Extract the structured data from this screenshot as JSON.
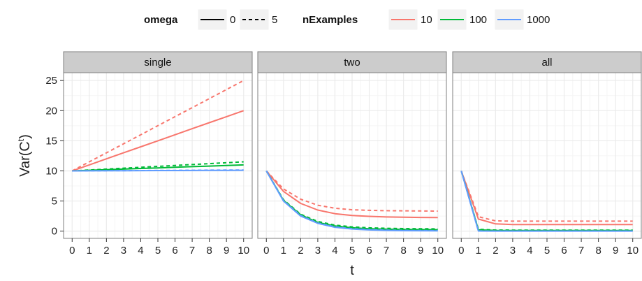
{
  "chart_data": {
    "type": "line",
    "facet_by": "panel",
    "panels": [
      "single",
      "two",
      "all"
    ],
    "xlabel": "t",
    "ylabel": "Var(C",
    "ylabel_superscript": "t",
    "ylabel_close": ")",
    "x": [
      0,
      1,
      2,
      3,
      4,
      5,
      6,
      7,
      8,
      9,
      10
    ],
    "xlim": [
      -0.5,
      10.5
    ],
    "ylim": [
      -1.2,
      26.3
    ],
    "y_ticks": [
      0,
      5,
      10,
      15,
      20,
      25
    ],
    "grid": true,
    "legend_position": "top",
    "legend": {
      "omega": {
        "title": "omega",
        "entries": [
          {
            "label": "0",
            "linetype": "solid"
          },
          {
            "label": "5",
            "linetype": "dashed"
          }
        ]
      },
      "nExamples": {
        "title": "nExamples",
        "entries": [
          {
            "label": "10",
            "color": "#F8766D"
          },
          {
            "label": "100",
            "color": "#00BA38"
          },
          {
            "label": "1000",
            "color": "#619CFF"
          }
        ]
      }
    },
    "series": [
      {
        "panel": "single",
        "omega": "0",
        "nExamples": "10",
        "values": [
          10,
          11,
          12,
          13,
          14,
          15,
          16,
          17,
          18,
          19,
          20
        ]
      },
      {
        "panel": "single",
        "omega": "5",
        "nExamples": "10",
        "values": [
          10,
          11.5,
          13,
          14.5,
          16,
          17.5,
          19,
          20.5,
          22,
          23.5,
          25
        ]
      },
      {
        "panel": "single",
        "omega": "0",
        "nExamples": "100",
        "values": [
          10,
          10.1,
          10.2,
          10.3,
          10.4,
          10.5,
          10.6,
          10.7,
          10.8,
          10.9,
          11
        ]
      },
      {
        "panel": "single",
        "omega": "5",
        "nExamples": "100",
        "values": [
          10,
          10.15,
          10.3,
          10.45,
          10.6,
          10.75,
          10.9,
          11.05,
          11.2,
          11.35,
          11.5
        ]
      },
      {
        "panel": "single",
        "omega": "0",
        "nExamples": "1000",
        "values": [
          10,
          10.01,
          10.02,
          10.03,
          10.04,
          10.05,
          10.06,
          10.07,
          10.08,
          10.09,
          10.1
        ]
      },
      {
        "panel": "single",
        "omega": "5",
        "nExamples": "1000",
        "values": [
          10,
          10.015,
          10.03,
          10.045,
          10.06,
          10.075,
          10.09,
          10.105,
          10.12,
          10.135,
          10.15
        ]
      },
      {
        "panel": "two",
        "omega": "0",
        "nExamples": "10",
        "values": [
          10,
          6.6,
          4.6,
          3.5,
          2.9,
          2.6,
          2.45,
          2.35,
          2.3,
          2.27,
          2.25
        ]
      },
      {
        "panel": "two",
        "omega": "5",
        "nExamples": "10",
        "values": [
          10,
          7.0,
          5.3,
          4.3,
          3.8,
          3.55,
          3.45,
          3.4,
          3.37,
          3.35,
          3.33
        ]
      },
      {
        "panel": "two",
        "omega": "0",
        "nExamples": "100",
        "values": [
          10,
          5.1,
          2.7,
          1.45,
          0.85,
          0.55,
          0.4,
          0.32,
          0.28,
          0.25,
          0.24
        ]
      },
      {
        "panel": "two",
        "omega": "5",
        "nExamples": "100",
        "values": [
          10,
          5.2,
          2.8,
          1.6,
          1.0,
          0.7,
          0.55,
          0.47,
          0.42,
          0.4,
          0.38
        ]
      },
      {
        "panel": "two",
        "omega": "0",
        "nExamples": "1000",
        "values": [
          10,
          5.0,
          2.5,
          1.3,
          0.65,
          0.35,
          0.2,
          0.12,
          0.08,
          0.06,
          0.05
        ]
      },
      {
        "panel": "two",
        "omega": "5",
        "nExamples": "1000",
        "values": [
          10,
          5.05,
          2.6,
          1.35,
          0.72,
          0.4,
          0.25,
          0.17,
          0.12,
          0.1,
          0.09
        ]
      },
      {
        "panel": "all",
        "omega": "0",
        "nExamples": "10",
        "values": [
          10,
          2.0,
          1.2,
          1.1,
          1.1,
          1.1,
          1.1,
          1.1,
          1.1,
          1.1,
          1.1
        ]
      },
      {
        "panel": "all",
        "omega": "5",
        "nExamples": "10",
        "values": [
          10,
          2.4,
          1.7,
          1.65,
          1.65,
          1.65,
          1.65,
          1.65,
          1.65,
          1.65,
          1.65
        ]
      },
      {
        "panel": "all",
        "omega": "0",
        "nExamples": "100",
        "values": [
          10,
          0.2,
          0.12,
          0.11,
          0.11,
          0.11,
          0.11,
          0.11,
          0.11,
          0.11,
          0.11
        ]
      },
      {
        "panel": "all",
        "omega": "5",
        "nExamples": "100",
        "values": [
          10,
          0.3,
          0.18,
          0.17,
          0.17,
          0.17,
          0.17,
          0.17,
          0.17,
          0.17,
          0.17
        ]
      },
      {
        "panel": "all",
        "omega": "0",
        "nExamples": "1000",
        "values": [
          10,
          0.02,
          0.01,
          0.01,
          0.01,
          0.01,
          0.01,
          0.01,
          0.01,
          0.01,
          0.01
        ]
      },
      {
        "panel": "all",
        "omega": "5",
        "nExamples": "1000",
        "values": [
          10,
          0.03,
          0.02,
          0.02,
          0.02,
          0.02,
          0.02,
          0.02,
          0.02,
          0.02,
          0.02
        ]
      }
    ]
  },
  "colors": {
    "panel_bg": "#ffffff",
    "grid_major": "#ebebeb",
    "grid_minor": "#f5f5f5",
    "strip_bg": "#cccccc",
    "panel_border": "#7f7f7f",
    "text": "#111111"
  }
}
